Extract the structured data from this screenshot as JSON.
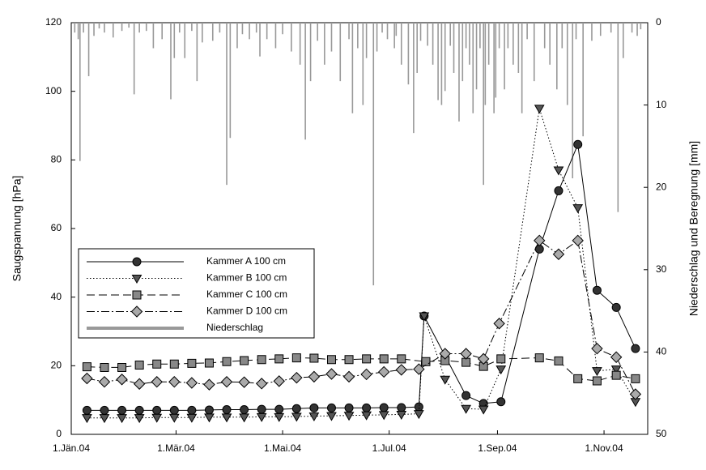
{
  "chart_data": {
    "type": "line",
    "y_label": "Saugspannung [hPa]",
    "y2_label": "Niederschlag und Beregnung [mm]",
    "xlim": [
      0,
      330
    ],
    "xticks": [
      {
        "value": 0,
        "label": "1.Jän.04"
      },
      {
        "value": 60,
        "label": "1.Mär.04"
      },
      {
        "value": 121,
        "label": "1.Mai.04"
      },
      {
        "value": 182,
        "label": "1.Jul.04"
      },
      {
        "value": 244,
        "label": "1.Sep.04"
      },
      {
        "value": 305,
        "label": "1.Nov.04"
      }
    ],
    "ylim": [
      0,
      120
    ],
    "yticks": [
      0,
      20,
      40,
      60,
      80,
      100,
      120
    ],
    "y2lim": [
      0,
      50
    ],
    "y2ticks": [
      0,
      10,
      20,
      30,
      40,
      50
    ],
    "y2_inverted": true,
    "legend": "center left",
    "series": [
      {
        "name": "Niederschlag",
        "type": "bar",
        "axis": "y2",
        "color": "#999999",
        "x": [
          2,
          4,
          5,
          7,
          10,
          13,
          16,
          19,
          24,
          29,
          33,
          36,
          39,
          43,
          47,
          52,
          57,
          59,
          62,
          65,
          69,
          72,
          75,
          81,
          85,
          89,
          91,
          95,
          98,
          102,
          106,
          108,
          112,
          117,
          121,
          126,
          131,
          134,
          137,
          141,
          145,
          149,
          154,
          159,
          161,
          164,
          167,
          169,
          173,
          175,
          178,
          181,
          185,
          186,
          189,
          193,
          196,
          198,
          200,
          204,
          207,
          210,
          212,
          214,
          217,
          219,
          222,
          224,
          226,
          228,
          230,
          232,
          234,
          236,
          237,
          239,
          242,
          243,
          245,
          248,
          250,
          253,
          256,
          258,
          261,
          265,
          271,
          274,
          278,
          281,
          284,
          287,
          289,
          293,
          298,
          303,
          309,
          313,
          316,
          321,
          324,
          326
        ],
        "values": [
          1.2,
          2,
          16.8,
          1.2,
          6.5,
          1.6,
          0.7,
          1.2,
          1.8,
          1,
          0.6,
          8.7,
          1.2,
          1,
          3.1,
          2,
          9.3,
          4.3,
          1.2,
          4.3,
          1,
          7.1,
          2.4,
          2.2,
          1.2,
          19.7,
          14,
          3.1,
          1.4,
          2,
          1.2,
          4.1,
          2,
          3.1,
          1.4,
          3.5,
          5.1,
          14.2,
          7.1,
          2.2,
          5.1,
          3.5,
          7.1,
          2,
          11,
          3.1,
          10,
          4.3,
          31.9,
          3.5,
          1.2,
          2,
          3.1,
          1.6,
          5.1,
          7.5,
          13.4,
          6.1,
          2.2,
          2.8,
          5.1,
          9.4,
          10,
          8.3,
          2.8,
          6.1,
          12,
          7.1,
          3.1,
          5.1,
          11,
          8.1,
          3.1,
          19.7,
          10,
          5.1,
          11,
          9.1,
          3.1,
          8.1,
          3.1,
          5.1,
          6.1,
          11,
          2,
          7.1,
          3.1,
          5.1,
          8.1,
          3.1,
          10,
          18.9,
          2,
          13.8,
          2.2,
          1.6,
          1.2,
          23,
          4.3,
          1.2,
          1.6,
          0.8
        ]
      },
      {
        "name": "Kammer A 100 cm",
        "type": "line",
        "color": "#333333",
        "dash": "solid",
        "marker": "circle",
        "x": [
          9,
          19,
          29,
          39,
          49,
          59,
          69,
          79,
          89,
          99,
          109,
          119,
          129,
          139,
          149,
          159,
          169,
          179,
          189,
          199,
          202,
          226,
          236,
          246,
          268,
          279,
          290,
          301,
          312,
          323
        ],
        "values": [
          7.0,
          7.0,
          7.0,
          7.0,
          7.0,
          7.0,
          7.0,
          7.1,
          7.2,
          7.2,
          7.3,
          7.3,
          7.5,
          7.7,
          7.7,
          7.7,
          7.7,
          7.8,
          7.8,
          8.0,
          34.5,
          11.3,
          9.0,
          9.5,
          54,
          71,
          84.5,
          42,
          37,
          25
        ]
      },
      {
        "name": "Kammer B 100 cm",
        "type": "line",
        "color": "#555555",
        "dash": "dotted",
        "marker": "triangle",
        "x": [
          9,
          19,
          29,
          39,
          49,
          59,
          69,
          79,
          89,
          99,
          109,
          119,
          129,
          139,
          149,
          159,
          169,
          179,
          189,
          199,
          202,
          214,
          226,
          236,
          246,
          268,
          279,
          290,
          301,
          312,
          323
        ],
        "values": [
          4.8,
          4.8,
          4.8,
          4.8,
          4.9,
          4.9,
          4.9,
          5.0,
          5.0,
          5.0,
          5.1,
          5.1,
          5.2,
          5.3,
          5.4,
          5.5,
          5.6,
          5.7,
          5.8,
          6.0,
          34.5,
          16,
          7.5,
          7.3,
          19,
          95,
          77,
          66,
          18.5,
          19,
          9.5
        ]
      },
      {
        "name": "Kammer C 100 cm",
        "type": "line",
        "color": "#888888",
        "dash": "dashed",
        "marker": "square",
        "x": [
          9,
          19,
          29,
          39,
          49,
          59,
          69,
          79,
          89,
          99,
          109,
          119,
          129,
          139,
          149,
          159,
          169,
          179,
          189,
          203,
          214,
          226,
          236,
          246,
          268,
          279,
          290,
          301,
          312,
          323
        ],
        "values": [
          19.7,
          19.5,
          19.5,
          20.2,
          20.5,
          20.5,
          20.7,
          20.8,
          21.2,
          21.5,
          21.8,
          22.0,
          22.3,
          22.2,
          21.8,
          21.8,
          22.0,
          22.0,
          22.0,
          21.2,
          21.5,
          21.0,
          19.8,
          22.0,
          22.3,
          21.4,
          16.2,
          15.6,
          17.2,
          16.2
        ]
      },
      {
        "name": "Kammer D 100 cm",
        "type": "line",
        "color": "#aaaaaa",
        "dash": "dashdot",
        "marker": "diamond",
        "x": [
          9,
          19,
          29,
          39,
          49,
          59,
          69,
          79,
          89,
          99,
          109,
          119,
          129,
          139,
          149,
          159,
          169,
          179,
          189,
          199,
          214,
          226,
          236,
          245,
          268,
          279,
          290,
          301,
          312,
          323
        ],
        "values": [
          16.3,
          15.3,
          16.0,
          14.7,
          15.3,
          15.3,
          15.0,
          14.5,
          15.3,
          15.2,
          14.8,
          15.5,
          16.5,
          16.8,
          17.6,
          16.8,
          17.5,
          18.2,
          18.8,
          19.0,
          23.5,
          23.5,
          22.0,
          32.3,
          56.5,
          52.5,
          56.5,
          25.0,
          22.5,
          11.7
        ]
      }
    ]
  }
}
